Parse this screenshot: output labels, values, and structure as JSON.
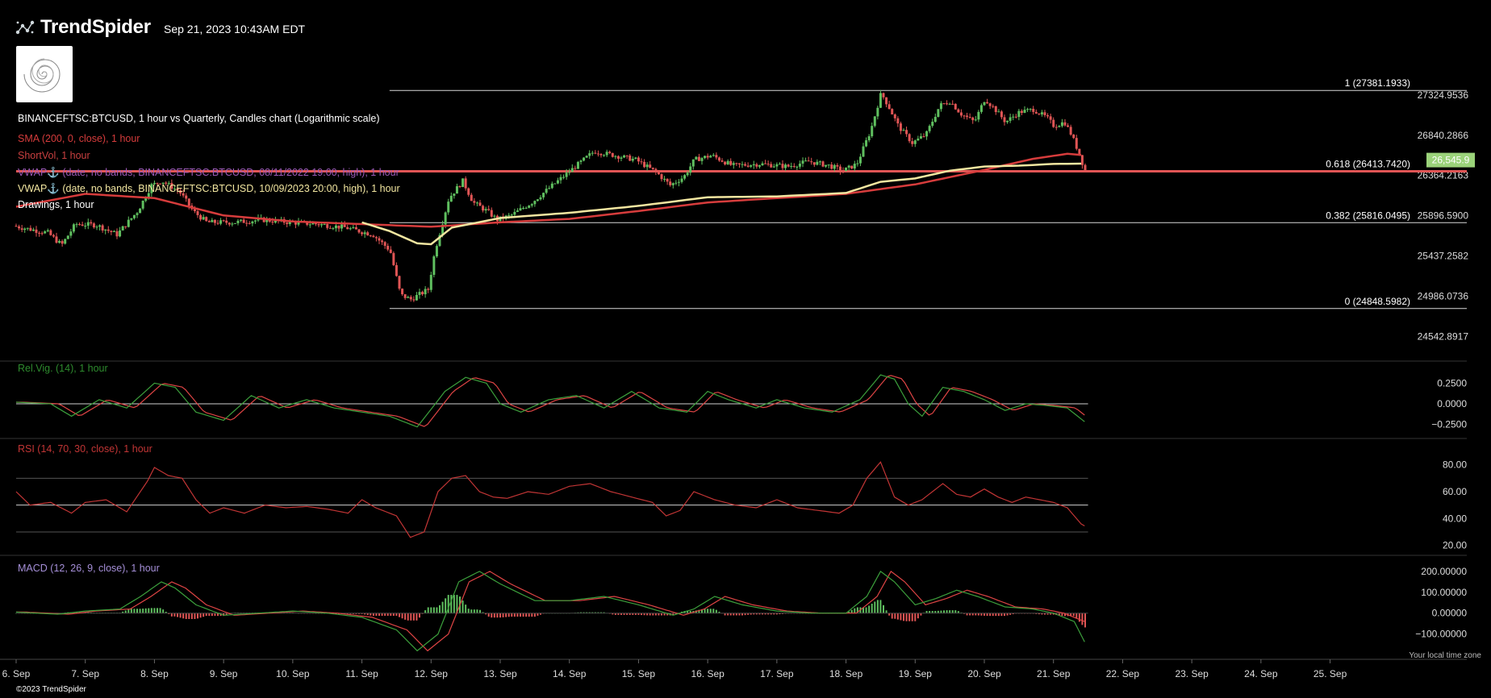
{
  "header": {
    "brand": "TrendSpider",
    "timestamp": "Sep 21, 2023 10:43AM EDT"
  },
  "legend": {
    "symbol_line": "BINANCEFTSC:BTCUSD, 1 hour vs Quarterly, Candles chart (Logarithmic scale)",
    "sma": "SMA (200, 0, close), 1 hour",
    "shortvol": "ShortVol, 1 hour",
    "vwap1": "VWAP⚓ (date, no bands, BINANCEFTSC:BTCUSD, 08/11/2022 19:00, high), 1 hour",
    "vwap2": "VWAP⚓ (date, no bands, BINANCEFTSC:BTCUSD, 10/09/2023 20:00, high), 1 hour",
    "drawings": "Drawings, 1 hour"
  },
  "colors": {
    "up": "#5fbf5f",
    "down": "#e05555",
    "sma": "#d63c3c",
    "vwap": "#f2e6a0",
    "shortvol": "#c94040",
    "vwap1_label": "#9b59b6",
    "relvig_label": "#2e8b2e",
    "rsi": "#c23535",
    "macd_label": "#a58fd8",
    "price_tag_bg": "#9bd37a"
  },
  "footer": {
    "copyright": "©2023 TrendSpider",
    "timezone_note": "Your local time zone"
  },
  "price_tag": "26,545.9",
  "chart_data": [
    {
      "type": "candlestick",
      "title": "BINANCEFTSC:BTCUSD, 1 hour vs Quarterly, Candles chart (Logarithmic scale)",
      "y_scale": "log",
      "ylim": [
        24300,
        27650
      ],
      "y_ticks": [
        "27324.9536",
        "26840.2866",
        "26364.2163",
        "25896.5900",
        "25437.2582",
        "24986.0736",
        "24542.8917"
      ],
      "x_ticks": [
        "6. Sep",
        "7. Sep",
        "8. Sep",
        "9. Sep",
        "10. Sep",
        "11. Sep",
        "12. Sep",
        "13. Sep",
        "14. Sep",
        "15. Sep",
        "16. Sep",
        "17. Sep",
        "18. Sep",
        "19. Sep",
        "20. Sep",
        "21. Sep",
        "22. Sep",
        "23. Sep",
        "24. Sep",
        "25. Sep"
      ],
      "x_range": [
        6,
        25.6
      ],
      "last_price": 26545.9,
      "fibonacci": [
        {
          "label": "1 (27381.1933)",
          "price": 27381.1933
        },
        {
          "label": "0.618 (26413.7420)",
          "price": 26413.742
        },
        {
          "label": "0.382 (25816.0495)",
          "price": 25816.0495
        },
        {
          "label": "0 (24848.5982)",
          "price": 24848.5982
        }
      ],
      "horizontal_line": 26413.742,
      "price_path": [
        [
          6.0,
          25780
        ],
        [
          6.5,
          25700
        ],
        [
          6.7,
          25560
        ],
        [
          6.9,
          25800
        ],
        [
          7.2,
          25790
        ],
        [
          7.5,
          25680
        ],
        [
          7.8,
          25950
        ],
        [
          8.0,
          26250
        ],
        [
          8.15,
          26300
        ],
        [
          8.4,
          26180
        ],
        [
          8.6,
          25950
        ],
        [
          8.8,
          25820
        ],
        [
          9.2,
          25820
        ],
        [
          9.6,
          25850
        ],
        [
          10.0,
          25820
        ],
        [
          10.4,
          25800
        ],
        [
          10.8,
          25760
        ],
        [
          11.2,
          25680
        ],
        [
          11.45,
          25500
        ],
        [
          11.6,
          25000
        ],
        [
          11.75,
          24950
        ],
        [
          12.0,
          25060
        ],
        [
          12.1,
          25500
        ],
        [
          12.3,
          26100
        ],
        [
          12.5,
          26300
        ],
        [
          12.65,
          26050
        ],
        [
          12.85,
          25950
        ],
        [
          13.0,
          25850
        ],
        [
          13.2,
          25900
        ],
        [
          13.5,
          26050
        ],
        [
          13.8,
          26250
        ],
        [
          14.1,
          26450
        ],
        [
          14.4,
          26650
        ],
        [
          14.7,
          26600
        ],
        [
          15.0,
          26550
        ],
        [
          15.3,
          26400
        ],
        [
          15.5,
          26250
        ],
        [
          15.7,
          26350
        ],
        [
          15.85,
          26550
        ],
        [
          16.1,
          26600
        ],
        [
          16.4,
          26480
        ],
        [
          16.8,
          26500
        ],
        [
          17.2,
          26470
        ],
        [
          17.5,
          26530
        ],
        [
          17.8,
          26480
        ],
        [
          18.0,
          26420
        ],
        [
          18.2,
          26500
        ],
        [
          18.4,
          26900
        ],
        [
          18.55,
          27350
        ],
        [
          18.65,
          27200
        ],
        [
          18.8,
          26950
        ],
        [
          19.0,
          26750
        ],
        [
          19.2,
          26850
        ],
        [
          19.4,
          27200
        ],
        [
          19.55,
          27250
        ],
        [
          19.7,
          27100
        ],
        [
          19.9,
          27000
        ],
        [
          20.05,
          27280
        ],
        [
          20.2,
          27150
        ],
        [
          20.35,
          27000
        ],
        [
          20.55,
          27120
        ],
        [
          20.75,
          27150
        ],
        [
          20.95,
          27050
        ],
        [
          21.05,
          26950
        ],
        [
          21.2,
          27000
        ],
        [
          21.3,
          26850
        ],
        [
          21.4,
          26650
        ],
        [
          21.5,
          26420
        ]
      ],
      "sma_path": [
        [
          6.0,
          26000
        ],
        [
          7.0,
          26150
        ],
        [
          8.0,
          26100
        ],
        [
          9.0,
          25900
        ],
        [
          10.0,
          25830
        ],
        [
          11.0,
          25800
        ],
        [
          12.0,
          25770
        ],
        [
          13.0,
          25820
        ],
        [
          14.0,
          25860
        ],
        [
          15.0,
          25950
        ],
        [
          16.0,
          26050
        ],
        [
          17.0,
          26100
        ],
        [
          18.0,
          26150
        ],
        [
          19.0,
          26260
        ],
        [
          20.0,
          26430
        ],
        [
          20.7,
          26560
        ],
        [
          21.2,
          26620
        ],
        [
          21.5,
          26600
        ]
      ],
      "vwap_path": [
        [
          11.0,
          25820
        ],
        [
          11.4,
          25720
        ],
        [
          11.8,
          25580
        ],
        [
          12.0,
          25570
        ],
        [
          12.3,
          25760
        ],
        [
          13.0,
          25870
        ],
        [
          14.0,
          25930
        ],
        [
          15.0,
          26010
        ],
        [
          16.0,
          26110
        ],
        [
          17.0,
          26120
        ],
        [
          18.0,
          26160
        ],
        [
          18.5,
          26290
        ],
        [
          19.0,
          26330
        ],
        [
          19.5,
          26420
        ],
        [
          20.0,
          26470
        ],
        [
          20.5,
          26480
        ],
        [
          21.0,
          26500
        ],
        [
          21.5,
          26505
        ]
      ]
    },
    {
      "type": "line",
      "title": "Rel.Vig. (14), 1 hour",
      "y_ticks": [
        "0.2500",
        "0.0000",
        "−0.2500"
      ],
      "ylim": [
        -0.38,
        0.4
      ],
      "series": [
        {
          "name": "Rel.Vig. (14), 1 hour",
          "values": [
            [
              6.0,
              0.02
            ],
            [
              6.5,
              0.0
            ],
            [
              6.8,
              -0.15
            ],
            [
              7.2,
              0.05
            ],
            [
              7.6,
              -0.05
            ],
            [
              8.0,
              0.25
            ],
            [
              8.3,
              0.2
            ],
            [
              8.6,
              -0.1
            ],
            [
              9.0,
              -0.2
            ],
            [
              9.4,
              0.1
            ],
            [
              9.8,
              -0.05
            ],
            [
              10.2,
              0.05
            ],
            [
              10.6,
              -0.05
            ],
            [
              11.0,
              -0.1
            ],
            [
              11.4,
              -0.15
            ],
            [
              11.8,
              -0.28
            ],
            [
              12.2,
              0.15
            ],
            [
              12.5,
              0.32
            ],
            [
              12.8,
              0.25
            ],
            [
              13.0,
              0.0
            ],
            [
              13.3,
              -0.1
            ],
            [
              13.7,
              0.05
            ],
            [
              14.1,
              0.1
            ],
            [
              14.5,
              -0.05
            ],
            [
              14.9,
              0.15
            ],
            [
              15.3,
              -0.05
            ],
            [
              15.7,
              -0.1
            ],
            [
              16.0,
              0.15
            ],
            [
              16.3,
              0.05
            ],
            [
              16.7,
              -0.05
            ],
            [
              17.0,
              0.05
            ],
            [
              17.4,
              -0.05
            ],
            [
              17.8,
              -0.1
            ],
            [
              18.2,
              0.05
            ],
            [
              18.5,
              0.35
            ],
            [
              18.7,
              0.3
            ],
            [
              18.9,
              0.0
            ],
            [
              19.1,
              -0.15
            ],
            [
              19.4,
              0.2
            ],
            [
              19.7,
              0.15
            ],
            [
              20.0,
              0.05
            ],
            [
              20.3,
              -0.08
            ],
            [
              20.6,
              0.0
            ],
            [
              20.9,
              -0.02
            ],
            [
              21.2,
              -0.05
            ],
            [
              21.5,
              -0.25
            ]
          ]
        }
      ]
    },
    {
      "type": "line",
      "title": "RSI (14, 70, 30, close), 1 hour",
      "y_ticks": [
        "80.00",
        "60.00",
        "40.00",
        "20.00"
      ],
      "ylim": [
        15,
        90
      ],
      "levels": [
        70,
        50,
        30
      ],
      "series": [
        {
          "name": "RSI (14, 70, 30, close), 1 hour",
          "values": [
            [
              6.0,
              60
            ],
            [
              6.2,
              50
            ],
            [
              6.5,
              52
            ],
            [
              6.8,
              44
            ],
            [
              7.0,
              52
            ],
            [
              7.3,
              54
            ],
            [
              7.6,
              45
            ],
            [
              7.9,
              68
            ],
            [
              8.0,
              78
            ],
            [
              8.2,
              72
            ],
            [
              8.4,
              70
            ],
            [
              8.6,
              54
            ],
            [
              8.8,
              44
            ],
            [
              9.0,
              48
            ],
            [
              9.3,
              44
            ],
            [
              9.6,
              50
            ],
            [
              9.9,
              48
            ],
            [
              10.2,
              49
            ],
            [
              10.5,
              47
            ],
            [
              10.8,
              44
            ],
            [
              11.0,
              54
            ],
            [
              11.2,
              48
            ],
            [
              11.5,
              42
            ],
            [
              11.7,
              26
            ],
            [
              11.9,
              30
            ],
            [
              12.1,
              60
            ],
            [
              12.3,
              70
            ],
            [
              12.5,
              72
            ],
            [
              12.7,
              60
            ],
            [
              12.9,
              56
            ],
            [
              13.1,
              55
            ],
            [
              13.4,
              60
            ],
            [
              13.7,
              58
            ],
            [
              14.0,
              64
            ],
            [
              14.3,
              66
            ],
            [
              14.6,
              60
            ],
            [
              14.9,
              56
            ],
            [
              15.2,
              52
            ],
            [
              15.4,
              42
            ],
            [
              15.6,
              46
            ],
            [
              15.8,
              60
            ],
            [
              16.1,
              54
            ],
            [
              16.4,
              50
            ],
            [
              16.7,
              48
            ],
            [
              17.0,
              54
            ],
            [
              17.3,
              48
            ],
            [
              17.6,
              46
            ],
            [
              17.9,
              44
            ],
            [
              18.1,
              50
            ],
            [
              18.3,
              70
            ],
            [
              18.5,
              82
            ],
            [
              18.7,
              56
            ],
            [
              18.9,
              50
            ],
            [
              19.1,
              54
            ],
            [
              19.4,
              66
            ],
            [
              19.6,
              58
            ],
            [
              19.8,
              56
            ],
            [
              20.0,
              62
            ],
            [
              20.2,
              56
            ],
            [
              20.4,
              52
            ],
            [
              20.6,
              56
            ],
            [
              20.8,
              54
            ],
            [
              21.0,
              52
            ],
            [
              21.2,
              48
            ],
            [
              21.4,
              36
            ],
            [
              21.5,
              33
            ]
          ]
        }
      ]
    },
    {
      "type": "bar",
      "title": "MACD (12, 26, 9, close), 1 hour",
      "y_ticks": [
        "200.00000",
        "100.00000",
        "0.00000",
        "−100.00000"
      ],
      "ylim": [
        -190,
        215
      ],
      "series": [
        {
          "name": "MACD (12, 26, 9, close), 1 hour",
          "values": [
            [
              6.0,
              5
            ],
            [
              6.6,
              -5
            ],
            [
              7.0,
              10
            ],
            [
              7.5,
              20
            ],
            [
              7.8,
              80
            ],
            [
              8.1,
              150
            ],
            [
              8.3,
              120
            ],
            [
              8.6,
              40
            ],
            [
              9.0,
              -10
            ],
            [
              9.5,
              0
            ],
            [
              10.0,
              10
            ],
            [
              10.5,
              0
            ],
            [
              11.0,
              -20
            ],
            [
              11.5,
              -80
            ],
            [
              11.8,
              -180
            ],
            [
              12.1,
              -100
            ],
            [
              12.4,
              150
            ],
            [
              12.7,
              200
            ],
            [
              13.0,
              140
            ],
            [
              13.5,
              60
            ],
            [
              14.0,
              60
            ],
            [
              14.5,
              80
            ],
            [
              15.0,
              40
            ],
            [
              15.5,
              -10
            ],
            [
              15.8,
              20
            ],
            [
              16.1,
              80
            ],
            [
              16.5,
              40
            ],
            [
              17.0,
              10
            ],
            [
              17.5,
              0
            ],
            [
              18.0,
              0
            ],
            [
              18.3,
              80
            ],
            [
              18.5,
              200
            ],
            [
              18.7,
              150
            ],
            [
              19.0,
              40
            ],
            [
              19.3,
              70
            ],
            [
              19.6,
              110
            ],
            [
              19.9,
              80
            ],
            [
              20.3,
              30
            ],
            [
              20.7,
              20
            ],
            [
              21.0,
              0
            ],
            [
              21.3,
              -40
            ],
            [
              21.5,
              -170
            ]
          ]
        }
      ]
    }
  ]
}
